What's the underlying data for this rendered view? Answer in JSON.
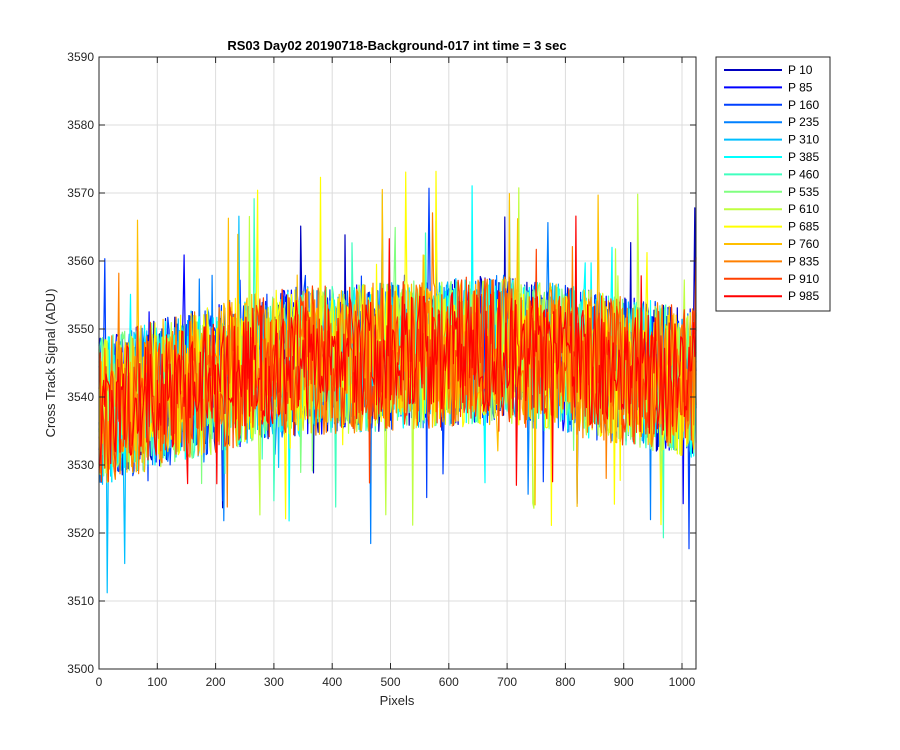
{
  "chart_data": {
    "type": "line",
    "title": "RS03 Day02 20190718-Background-017 int time = 3 sec",
    "xlabel": "Pixels",
    "ylabel": "Cross Track Signal (ADU)",
    "xlim": [
      0,
      1024
    ],
    "ylim": [
      3500,
      3590
    ],
    "xticks": [
      0,
      100,
      200,
      300,
      400,
      500,
      600,
      700,
      800,
      900,
      1000
    ],
    "yticks": [
      3500,
      3510,
      3520,
      3530,
      3540,
      3550,
      3560,
      3570,
      3580,
      3590
    ],
    "grid": true,
    "legend_position": "outside-top-right",
    "series": [
      {
        "name": "P 10",
        "color": "#0000bf",
        "mean_profile": [
          [
            0,
            3538
          ],
          [
            300,
            3545
          ],
          [
            500,
            3546
          ],
          [
            700,
            3547
          ],
          [
            1024,
            3542
          ]
        ],
        "spread": 11,
        "min": 3510,
        "max": 3580
      },
      {
        "name": "P 85",
        "color": "#0000ff",
        "mean_profile": [
          [
            0,
            3538
          ],
          [
            300,
            3545
          ],
          [
            500,
            3546
          ],
          [
            700,
            3547
          ],
          [
            1024,
            3542
          ]
        ],
        "spread": 11,
        "min": 3502,
        "max": 3580
      },
      {
        "name": "P 160",
        "color": "#0040ff",
        "mean_profile": [
          [
            0,
            3538
          ],
          [
            300,
            3545
          ],
          [
            500,
            3546
          ],
          [
            700,
            3547
          ],
          [
            1024,
            3542
          ]
        ],
        "spread": 11,
        "min": 3510,
        "max": 3578
      },
      {
        "name": "P 235",
        "color": "#0080ff",
        "mean_profile": [
          [
            0,
            3538
          ],
          [
            300,
            3545
          ],
          [
            500,
            3546
          ],
          [
            700,
            3547
          ],
          [
            1024,
            3542
          ]
        ],
        "spread": 11,
        "min": 3510,
        "max": 3578
      },
      {
        "name": "P 310",
        "color": "#00bfff",
        "mean_profile": [
          [
            0,
            3538
          ],
          [
            300,
            3545
          ],
          [
            500,
            3546
          ],
          [
            700,
            3547
          ],
          [
            1024,
            3542
          ]
        ],
        "spread": 11,
        "min": 3509,
        "max": 3581
      },
      {
        "name": "P 385",
        "color": "#00ffff",
        "mean_profile": [
          [
            0,
            3538
          ],
          [
            300,
            3545
          ],
          [
            500,
            3546
          ],
          [
            700,
            3547
          ],
          [
            1024,
            3542
          ]
        ],
        "spread": 11,
        "min": 3510,
        "max": 3578
      },
      {
        "name": "P 460",
        "color": "#40ffbf",
        "mean_profile": [
          [
            0,
            3538
          ],
          [
            300,
            3545
          ],
          [
            500,
            3546
          ],
          [
            700,
            3547
          ],
          [
            1024,
            3542
          ]
        ],
        "spread": 11,
        "min": 3507,
        "max": 3582
      },
      {
        "name": "P 535",
        "color": "#80ff80",
        "mean_profile": [
          [
            0,
            3538
          ],
          [
            300,
            3545
          ],
          [
            500,
            3546
          ],
          [
            700,
            3547
          ],
          [
            1024,
            3542
          ]
        ],
        "spread": 11,
        "min": 3510,
        "max": 3578
      },
      {
        "name": "P 610",
        "color": "#bfff40",
        "mean_profile": [
          [
            0,
            3538
          ],
          [
            300,
            3545
          ],
          [
            500,
            3546
          ],
          [
            700,
            3547
          ],
          [
            1024,
            3542
          ]
        ],
        "spread": 11,
        "min": 3505,
        "max": 3578
      },
      {
        "name": "P 685",
        "color": "#ffff00",
        "mean_profile": [
          [
            0,
            3538
          ],
          [
            300,
            3545
          ],
          [
            500,
            3546
          ],
          [
            700,
            3547
          ],
          [
            1024,
            3542
          ]
        ],
        "spread": 11,
        "min": 3510,
        "max": 3578
      },
      {
        "name": "P 760",
        "color": "#ffbf00",
        "mean_profile": [
          [
            0,
            3538
          ],
          [
            300,
            3545
          ],
          [
            500,
            3546
          ],
          [
            700,
            3547
          ],
          [
            1024,
            3542
          ]
        ],
        "spread": 11,
        "min": 3510,
        "max": 3578
      },
      {
        "name": "P 835",
        "color": "#ff8000",
        "mean_profile": [
          [
            0,
            3538
          ],
          [
            300,
            3545
          ],
          [
            500,
            3546
          ],
          [
            700,
            3547
          ],
          [
            1024,
            3542
          ]
        ],
        "spread": 11,
        "min": 3508,
        "max": 3581
      },
      {
        "name": "P 910",
        "color": "#ff4000",
        "mean_profile": [
          [
            0,
            3538
          ],
          [
            300,
            3545
          ],
          [
            500,
            3546
          ],
          [
            700,
            3547
          ],
          [
            1024,
            3542
          ]
        ],
        "spread": 11,
        "min": 3507,
        "max": 3578
      },
      {
        "name": "P 985",
        "color": "#ff0000",
        "mean_profile": [
          [
            0,
            3538
          ],
          [
            300,
            3545
          ],
          [
            500,
            3546
          ],
          [
            700,
            3547
          ],
          [
            1024,
            3542
          ]
        ],
        "spread": 9,
        "min": 3512,
        "max": 3573
      }
    ]
  }
}
